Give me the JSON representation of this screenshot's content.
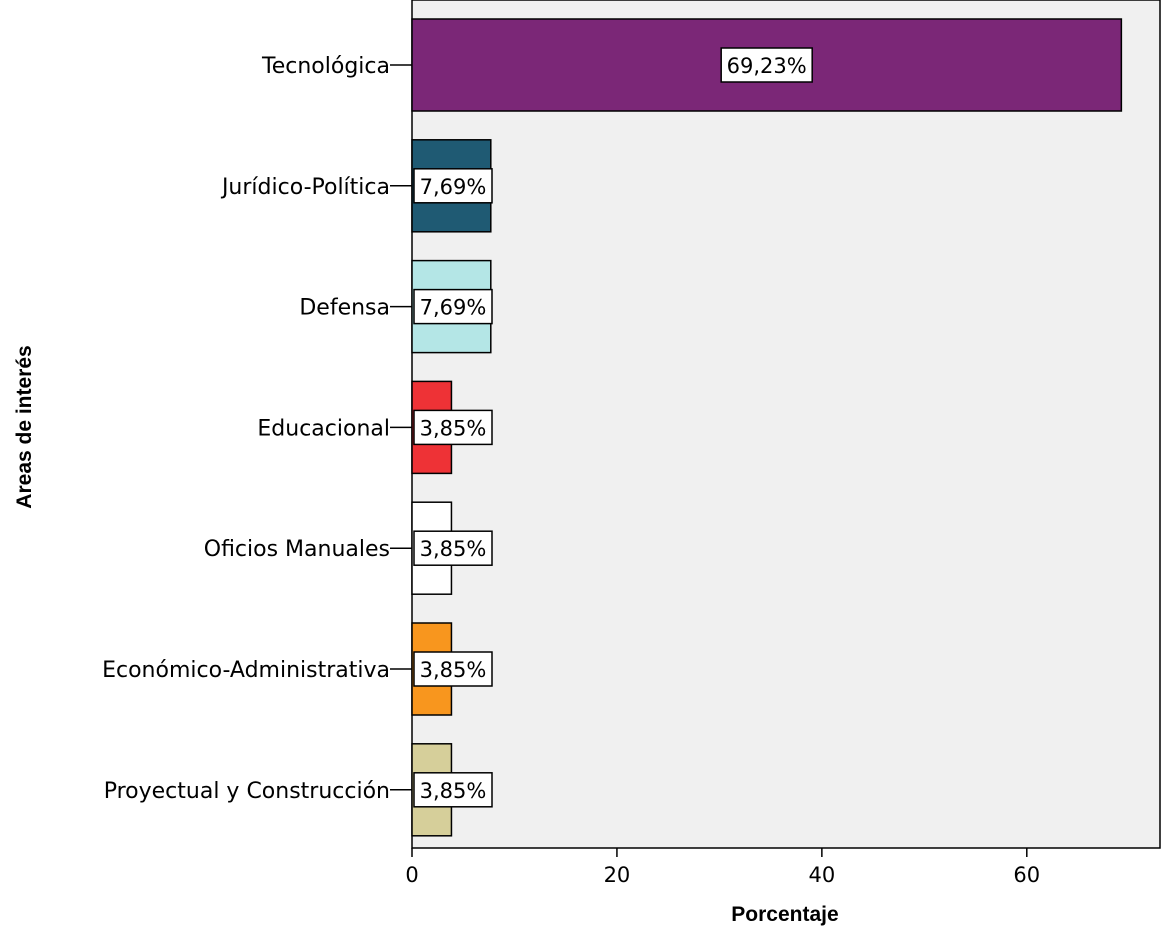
{
  "chart_data": {
    "type": "bar",
    "orientation": "horizontal",
    "categories": [
      "Tecnológica",
      "Jurídico-Política",
      "Defensa",
      "Educacional",
      "Oficios Manuales",
      "Económico-Administrativa",
      "Proyectual y Construcción"
    ],
    "values": [
      69.23,
      7.69,
      7.69,
      3.85,
      3.85,
      3.85,
      3.85
    ],
    "data_labels": [
      "69,23%",
      "7,69%",
      "7,69%",
      "3,85%",
      "3,85%",
      "3,85%",
      "3,85%"
    ],
    "colors": [
      "#7b2777",
      "#1f5a73",
      "#b4e6e6",
      "#ee3236",
      "#ffffff",
      "#f8961e",
      "#d6cf9a"
    ],
    "xlabel": "Porcentaje",
    "ylabel": "Areas de interés",
    "xlim": [
      0,
      73
    ],
    "xticks": [
      0,
      20,
      40,
      60
    ],
    "xtick_labels": [
      "0",
      "20",
      "40",
      "60"
    ],
    "grid": false,
    "legend": false,
    "plot_background": "#f0f0f0"
  }
}
